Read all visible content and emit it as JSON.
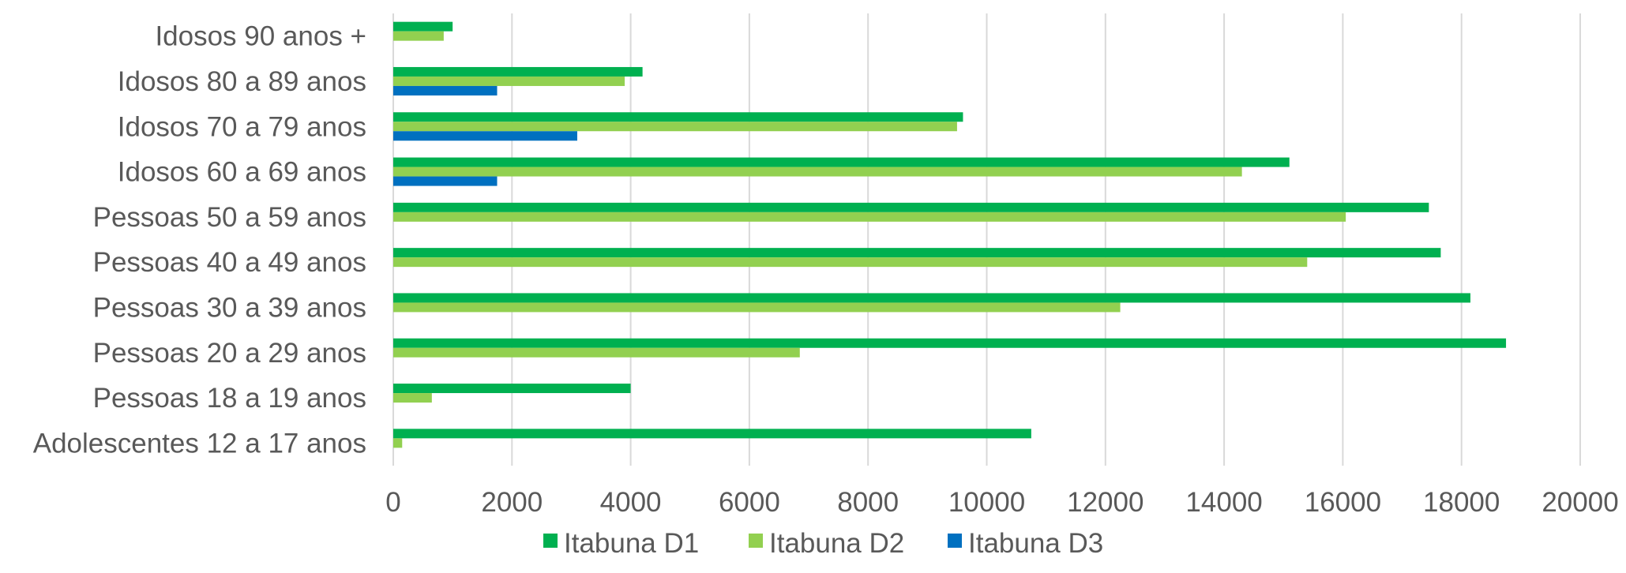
{
  "chart_data": {
    "type": "bar",
    "orientation": "horizontal",
    "categories": [
      "Adolescentes 12 a 17 anos",
      "Pessoas 18 a 19 anos",
      "Pessoas 20 a 29 anos",
      "Pessoas 30 a 39 anos",
      "Pessoas 40 a 49 anos",
      "Pessoas 50 a 59 anos",
      "Idosos 60 a 69 anos",
      "Idosos 70 a 79 anos",
      "Idosos 80 a 89 anos",
      "Idosos 90 anos +"
    ],
    "series": [
      {
        "name": "Itabuna D1",
        "color": "#00b050",
        "values": [
          10750,
          4000,
          18750,
          18150,
          17650,
          17450,
          15100,
          9600,
          4200,
          1000
        ]
      },
      {
        "name": "Itabuna D2",
        "color": "#92d050",
        "values": [
          150,
          650,
          6850,
          12250,
          15400,
          16050,
          14300,
          9500,
          3900,
          850
        ]
      },
      {
        "name": "Itabuna D3",
        "color": "#0070c0",
        "values": [
          0,
          0,
          0,
          0,
          0,
          0,
          1750,
          3100,
          1750,
          0
        ]
      }
    ],
    "xlim": [
      0,
      20000
    ],
    "xticks": [
      "0",
      "2000",
      "4000",
      "6000",
      "8000",
      "10000",
      "12000",
      "14000",
      "16000",
      "18000",
      "20000"
    ],
    "grid": "vertical",
    "legend_position": "bottom"
  }
}
